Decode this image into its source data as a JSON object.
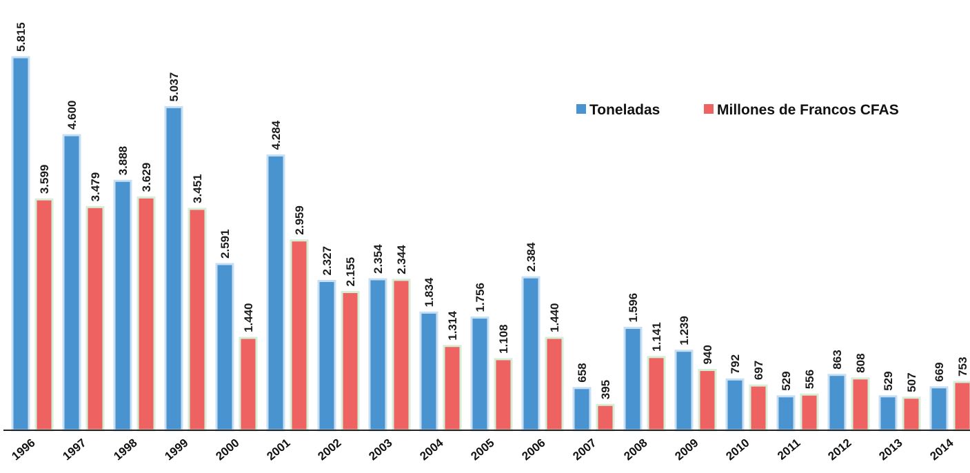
{
  "chart_data": {
    "type": "bar",
    "title": "",
    "xlabel": "",
    "ylabel": "",
    "categories": [
      "1996",
      "1997",
      "1998",
      "1999",
      "2000",
      "2001",
      "2002",
      "2003",
      "2004",
      "2005",
      "2006",
      "2007",
      "2008",
      "2009",
      "2010",
      "2011",
      "2012",
      "2013",
      "2014"
    ],
    "series": [
      {
        "name": "Toneladas",
        "color": "#4a93d1",
        "values": [
          5815,
          4600,
          3888,
          5037,
          2591,
          4284,
          2327,
          2354,
          1834,
          1756,
          2384,
          658,
          1596,
          1239,
          792,
          529,
          863,
          529,
          669
        ],
        "labels": [
          "5.815",
          "4.600",
          "3.888",
          "5.037",
          "2.591",
          "4.284",
          "2.327",
          "2.354",
          "1.834",
          "1.756",
          "2.384",
          "658",
          "1.596",
          "1.239",
          "792",
          "529",
          "863",
          "529",
          "669"
        ]
      },
      {
        "name": "Millones de Francos CFAS",
        "color": "#ee6361",
        "values": [
          3599,
          3479,
          3629,
          3451,
          1440,
          2959,
          2155,
          2344,
          1314,
          1108,
          1440,
          395,
          1141,
          940,
          697,
          556,
          808,
          507,
          753
        ],
        "labels": [
          "3.599",
          "3.479",
          "3.629",
          "3.451",
          "1.440",
          "2.959",
          "2.155",
          "2.344",
          "1.314",
          "1.108",
          "1.440",
          "395",
          "1.141",
          "940",
          "697",
          "556",
          "808",
          "507",
          "753"
        ]
      }
    ],
    "ylim": [
      0,
      5815
    ],
    "grid": false,
    "legend_position": "top-right",
    "data_labels_rotated": true,
    "axis_line_color": "#222222"
  }
}
